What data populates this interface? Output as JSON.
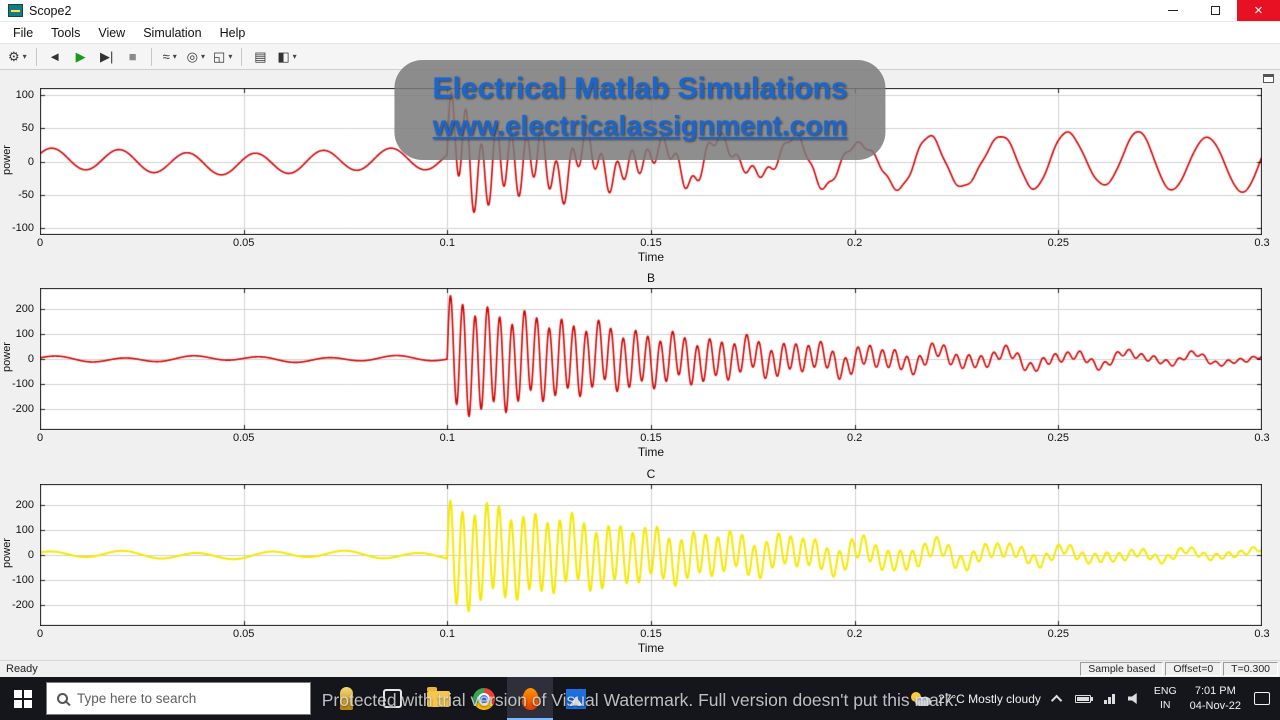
{
  "window": {
    "title": "Scope2",
    "controls": {
      "close_glyph": "×"
    }
  },
  "menu": {
    "items": [
      "File",
      "Tools",
      "View",
      "Simulation",
      "Help"
    ]
  },
  "toolbar": {
    "buttons": [
      {
        "name": "settings",
        "glyph": "⚙",
        "dd": true
      },
      {
        "name": "rewind",
        "glyph": "◄",
        "dd": false
      },
      {
        "name": "run",
        "glyph": "▶",
        "dd": false
      },
      {
        "name": "step-forward",
        "glyph": "▶|",
        "dd": false
      },
      {
        "name": "stop",
        "glyph": "■",
        "dd": false
      },
      {
        "name": "signal-selector",
        "glyph": "≈",
        "dd": true
      },
      {
        "name": "zoom",
        "glyph": "◎",
        "dd": true
      },
      {
        "name": "autoscale",
        "glyph": "◱",
        "dd": true
      },
      {
        "name": "layout",
        "glyph": "▤",
        "dd": false
      },
      {
        "name": "style",
        "glyph": "◧",
        "dd": true
      }
    ]
  },
  "watermark": {
    "line1": "Electrical Matlab Simulations",
    "line2": "www.electricalassignment.com"
  },
  "trial_notice": "Protected with trial version of Visual Watermark. Full version doesn't put this mark.",
  "statusbar": {
    "ready": "Ready",
    "sample_mode": "Sample based",
    "offset": "Offset=0",
    "time": "T=0.300"
  },
  "taskbar": {
    "search_placeholder": "Type here to search",
    "weather": "27°C Mostly cloudy",
    "language": "ENG",
    "region": "IN",
    "clock_time": "7:01 PM",
    "clock_date": "04-Nov-22"
  },
  "chart_data": [
    {
      "type": "line",
      "title": "",
      "xlabel": "Time",
      "ylabel": "power",
      "xlim": [
        0,
        0.3
      ],
      "ylim": [
        -110,
        110
      ],
      "xticks": [
        0,
        0.05,
        0.1,
        0.15,
        0.2,
        0.25,
        0.3
      ],
      "xtick_labels": [
        "0",
        "0.05",
        "0.1",
        "0.15",
        "0.2",
        "0.25",
        "0.3"
      ],
      "yticks": [
        -100,
        -50,
        0,
        50,
        100
      ],
      "grid": true,
      "color": "#d40000",
      "line_width": 1.6,
      "components": [
        {
          "amp": 16,
          "freq": 60,
          "phase": 0.5,
          "t0": 0,
          "decay": 0,
          "rise": 0
        },
        {
          "amp": 4,
          "freq": 12,
          "phase": 1.2,
          "t0": 0,
          "decay": 0,
          "rise": 0
        },
        {
          "amp": 70,
          "freq": 270,
          "phase": 0,
          "t0": 0.1,
          "decay": 30,
          "rise": 0
        },
        {
          "amp": 28,
          "freq": 95,
          "phase": 0.3,
          "t0": 0.1,
          "decay": 14,
          "rise": 0
        },
        {
          "amp": 26,
          "freq": 58,
          "phase": 0,
          "t0": 0.11,
          "decay": 0,
          "rise": 20
        }
      ]
    },
    {
      "type": "line",
      "title": "B",
      "xlabel": "Time",
      "ylabel": "power",
      "xlim": [
        0,
        0.3
      ],
      "ylim": [
        -285,
        285
      ],
      "xticks": [
        0,
        0.05,
        0.1,
        0.15,
        0.2,
        0.25,
        0.3
      ],
      "xtick_labels": [
        "0",
        "0.05",
        "0.1",
        "0.15",
        "0.2",
        "0.25",
        "0.3"
      ],
      "yticks": [
        -200,
        -100,
        0,
        100,
        200
      ],
      "grid": true,
      "color": "#d40000",
      "line_width": 1.6,
      "components": [
        {
          "amp": 9,
          "freq": 60,
          "phase": 0,
          "t0": 0,
          "decay": 0,
          "rise": 0
        },
        {
          "amp": 5,
          "freq": 22,
          "phase": 2,
          "t0": 0,
          "decay": 0,
          "rise": 0
        },
        {
          "amp": 225,
          "freq": 330,
          "phase": 0,
          "t0": 0.1,
          "decay": 17,
          "rise": 0
        },
        {
          "amp": 35,
          "freq": 110,
          "phase": 0.5,
          "t0": 0.1,
          "decay": 8,
          "rise": 0
        },
        {
          "amp": 20,
          "freq": 65,
          "phase": 0,
          "t0": 0.14,
          "decay": 0,
          "rise": 18
        }
      ]
    },
    {
      "type": "line",
      "title": "C",
      "xlabel": "Time",
      "ylabel": "power",
      "xlim": [
        0,
        0.3
      ],
      "ylim": [
        -285,
        285
      ],
      "xticks": [
        0,
        0.05,
        0.1,
        0.15,
        0.2,
        0.25,
        0.3
      ],
      "xtick_labels": [
        "0",
        "0.05",
        "0.1",
        "0.15",
        "0.2",
        "0.25",
        "0.3"
      ],
      "yticks": [
        -200,
        -100,
        0,
        100,
        200
      ],
      "grid": true,
      "color": "#f5e800",
      "line_width": 2,
      "components": [
        {
          "amp": 13,
          "freq": 55,
          "phase": 0.8,
          "t0": 0,
          "decay": 0,
          "rise": 0
        },
        {
          "amp": 5,
          "freq": 18,
          "phase": 0,
          "t0": 0,
          "decay": 0,
          "rise": 0
        },
        {
          "amp": 205,
          "freq": 335,
          "phase": 0,
          "t0": 0.1,
          "decay": 15,
          "rise": 0
        },
        {
          "amp": 30,
          "freq": 100,
          "phase": 1,
          "t0": 0.1,
          "decay": 7,
          "rise": 0
        },
        {
          "amp": 26,
          "freq": 62,
          "phase": 0,
          "t0": 0.15,
          "decay": 0,
          "rise": 18
        }
      ]
    }
  ]
}
